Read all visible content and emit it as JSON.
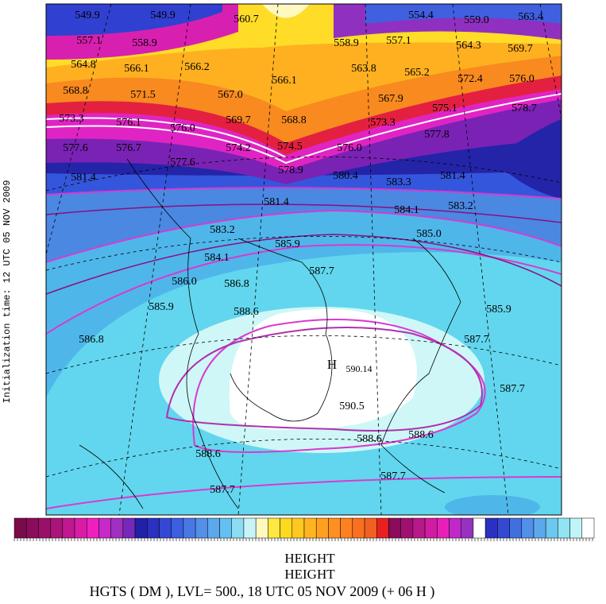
{
  "side_text": "Initialization time: 12 UTC 05 NOV 2009",
  "contour_labels": [
    "549.9",
    "549.9",
    "560.7",
    "554.4",
    "559.0",
    "563.4",
    "557.1",
    "558.9",
    "558.9",
    "557.1",
    "564.3",
    "569.7",
    "564.8",
    "566.1",
    "566.2",
    "566.1",
    "563.8",
    "565.2",
    "572.4",
    "576.0",
    "568.8",
    "571.5",
    "567.0",
    "567.9",
    "575.1",
    "578.7",
    "573.3",
    "576.1",
    "576.0",
    "569.7",
    "568.8",
    "573.3",
    "577.8",
    "577.6",
    "576.7",
    "574.2",
    "574.5",
    "576.0",
    "577.6",
    "578.9",
    "580.4",
    "583.3",
    "581.4",
    "581.4",
    "581.4",
    "584.1",
    "583.2",
    "583.2",
    "585.9",
    "585.0",
    "584.1",
    "587.7",
    "586.0",
    "586.8",
    "585.9",
    "588.6",
    "585.9",
    "586.8",
    "587.7",
    "590.5",
    "587.7",
    "588.6",
    "588.6",
    "588.6",
    "587.7",
    "587.7"
  ],
  "high": {
    "symbol": "H",
    "value": "590.14"
  },
  "footer": {
    "line1": "HEIGHT",
    "line2": "HEIGHT",
    "caption": "HGTS ( DM ),  LVL= 500., 18 UTC 05 NOV 2009 (+ 06 H )"
  }
}
